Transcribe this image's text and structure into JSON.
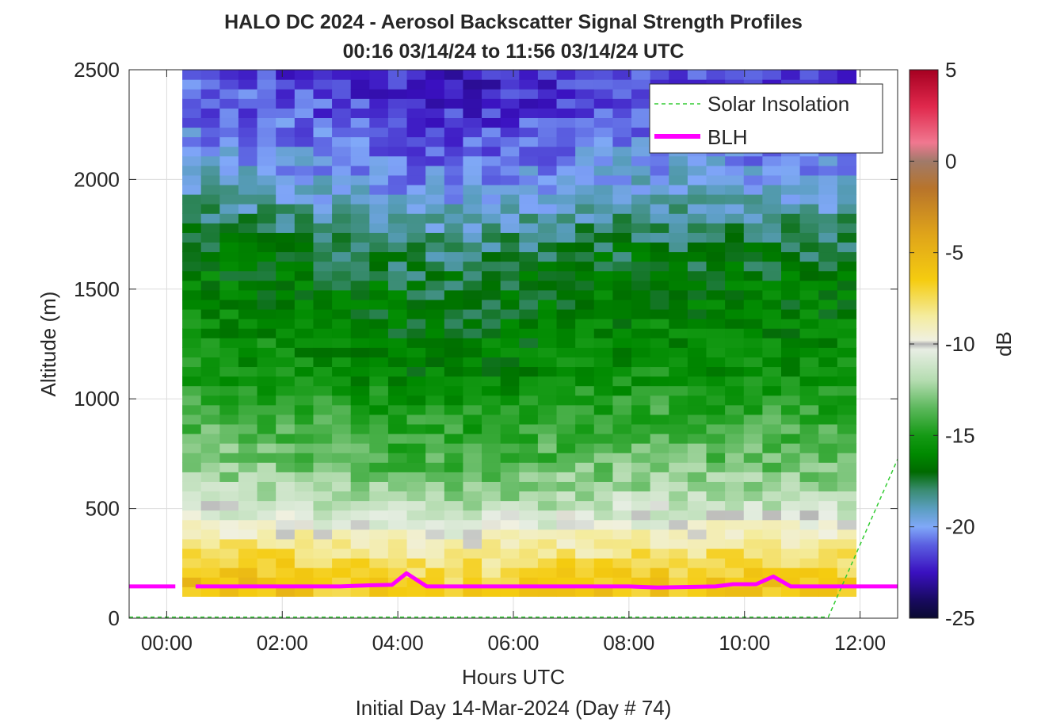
{
  "chart_data": {
    "type": "heatmap",
    "title": "HALO DC 2024 - Aerosol Backscatter Signal Strength Profiles",
    "subtitle": "00:16 03/14/24 to 11:56 03/14/24  UTC",
    "xlabel": "Hours UTC",
    "xlabel2": "Initial Day 14-Mar-2024 (Day # 74)",
    "ylabel": "Altitude (m)",
    "colorbar_label": "dB",
    "x_tick_labels": [
      "00:00",
      "02:00",
      "04:00",
      "06:00",
      "08:00",
      "10:00",
      "12:00"
    ],
    "x_tick_values": [
      0,
      2,
      4,
      6,
      8,
      10,
      12
    ],
    "y_tick_values": [
      0,
      500,
      1000,
      1500,
      2000,
      2500
    ],
    "colorbar_ticks": [
      5,
      0,
      -5,
      -10,
      -15,
      -20,
      -25
    ],
    "xlim": [
      -0.65,
      12.65
    ],
    "ylim": [
      0,
      2500
    ],
    "clim": [
      -25,
      5
    ],
    "grid": true,
    "legend": {
      "placement": "top-right",
      "entries": [
        {
          "label": "Solar Insolation",
          "color": "#33cc33",
          "style": "dashed"
        },
        {
          "label": "BLH",
          "color": "#ff00ff",
          "style": "solid"
        }
      ]
    },
    "heatmap_extent": {
      "x_start": 0.27,
      "x_end": 11.93,
      "y_start": 100,
      "y_end": 2500
    },
    "blh_segments": [
      [
        [
          -0.65,
          145
        ],
        [
          0.15,
          145
        ]
      ],
      [
        [
          0.5,
          145
        ],
        [
          3.0,
          145
        ],
        [
          3.5,
          150
        ],
        [
          3.9,
          152
        ],
        [
          4.15,
          205
        ],
        [
          4.5,
          145
        ],
        [
          8.0,
          145
        ],
        [
          8.5,
          140
        ],
        [
          9.5,
          145
        ],
        [
          9.8,
          155
        ],
        [
          10.2,
          155
        ],
        [
          10.5,
          190
        ],
        [
          10.8,
          145
        ],
        [
          12.65,
          145
        ]
      ]
    ],
    "solar_insolation": [
      [
        -0.65,
        5
      ],
      [
        11.45,
        5
      ],
      [
        12.65,
        725
      ]
    ],
    "profile_values": [
      {
        "alt": 150,
        "v": -6.5
      },
      {
        "alt": 250,
        "v": -7.5
      },
      {
        "alt": 350,
        "v": -9.0
      },
      {
        "alt": 500,
        "v": -11.5
      },
      {
        "alt": 700,
        "v": -13.5
      },
      {
        "alt": 900,
        "v": -14.5
      },
      {
        "alt": 1100,
        "v": -15.8
      },
      {
        "alt": 1300,
        "v": -16.3
      },
      {
        "alt": 1500,
        "v": -16.8
      },
      {
        "alt": 1700,
        "v": -17.8
      },
      {
        "alt": 1900,
        "v": -19.3
      },
      {
        "alt": 2100,
        "v": -20.5
      },
      {
        "alt": 2300,
        "v": -21.5
      },
      {
        "alt": 2500,
        "v": -22.0
      }
    ],
    "time_offsets": [
      {
        "t": 0.3,
        "d": 0.8
      },
      {
        "t": 2.5,
        "d": 0.3
      },
      {
        "t": 4.5,
        "d": -0.4
      },
      {
        "t": 6.0,
        "d": -0.2
      },
      {
        "t": 8.0,
        "d": 0.4
      },
      {
        "t": 10.0,
        "d": 0.3
      },
      {
        "t": 11.9,
        "d": 0.2
      }
    ],
    "colormap": [
      {
        "v": 5,
        "c": "#a50021"
      },
      {
        "v": 3,
        "c": "#e0284c"
      },
      {
        "v": 1,
        "c": "#f07890"
      },
      {
        "v": 0,
        "c": "#a07a6a"
      },
      {
        "v": -1.5,
        "c": "#b8742a"
      },
      {
        "v": -4,
        "c": "#dfa41a"
      },
      {
        "v": -6.5,
        "c": "#f5cc10"
      },
      {
        "v": -8.5,
        "c": "#f4eca0"
      },
      {
        "v": -9.8,
        "c": "#f0f0e0"
      },
      {
        "v": -10.0,
        "c": "#b5b5b5"
      },
      {
        "v": -10.3,
        "c": "#e8eee4"
      },
      {
        "v": -12,
        "c": "#b4dcb0"
      },
      {
        "v": -13.5,
        "c": "#5cb85c"
      },
      {
        "v": -15,
        "c": "#159a15"
      },
      {
        "v": -16,
        "c": "#008a00"
      },
      {
        "v": -17,
        "c": "#006a00"
      },
      {
        "v": -18,
        "c": "#3a8c72"
      },
      {
        "v": -19,
        "c": "#5a9ec0"
      },
      {
        "v": -20,
        "c": "#80a8f8"
      },
      {
        "v": -21,
        "c": "#5a5ee0"
      },
      {
        "v": -22.5,
        "c": "#3a10c0"
      },
      {
        "v": -24,
        "c": "#180a60"
      },
      {
        "v": -25,
        "c": "#0a0a30"
      }
    ]
  }
}
